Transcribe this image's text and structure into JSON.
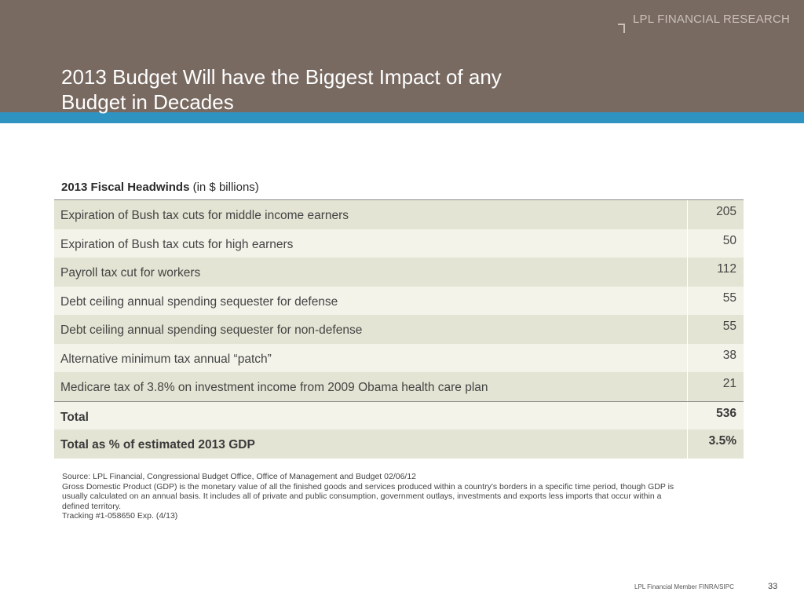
{
  "header": {
    "brand": "LPL FINANCIAL RESEARCH",
    "title_line1": "2013 Budget Will have the Biggest Impact of any",
    "title_line2": "Budget in Decades"
  },
  "table": {
    "heading_bold": "2013 Fiscal Headwinds",
    "heading_normal": "(in $ billions)",
    "rows": [
      {
        "label": "Expiration of Bush tax cuts for middle income earners",
        "value": "205"
      },
      {
        "label": "Expiration of Bush tax cuts for high earners",
        "value": "50"
      },
      {
        "label": "Payroll tax cut for workers",
        "value": "112"
      },
      {
        "label": "Debt ceiling annual spending sequester for defense",
        "value": "55"
      },
      {
        "label": "Debt ceiling annual spending sequester for non-defense",
        "value": "55"
      },
      {
        "label": "Alternative minimum tax annual “patch”",
        "value": "38"
      },
      {
        "label": "Medicare tax of 3.8% on investment income from 2009 Obama health care plan",
        "value": "21"
      }
    ],
    "total": {
      "label": "Total",
      "value": "536"
    },
    "gdp_total": {
      "label": "Total as % of estimated 2013 GDP",
      "value": "3.5%"
    }
  },
  "notes": {
    "source": "Source: LPL Financial, Congressional Budget Office, Office of Management and Budget 02/06/12",
    "gdp_line1": "Gross Domestic Product (GDP) is the monetary value of all the finished goods and services produced within a country's borders in a specific time period, though GDP is",
    "gdp_line2": "usually calculated on an annual basis. It includes all of private and public consumption, government outlays, investments and exports less imports that occur within a",
    "gdp_line3": "defined territory.",
    "tracking": "Tracking #1-058650 Exp. (4/13)"
  },
  "footer": {
    "member_text": "LPL Financial Member FINRA/SIPC",
    "page_number": "33"
  }
}
